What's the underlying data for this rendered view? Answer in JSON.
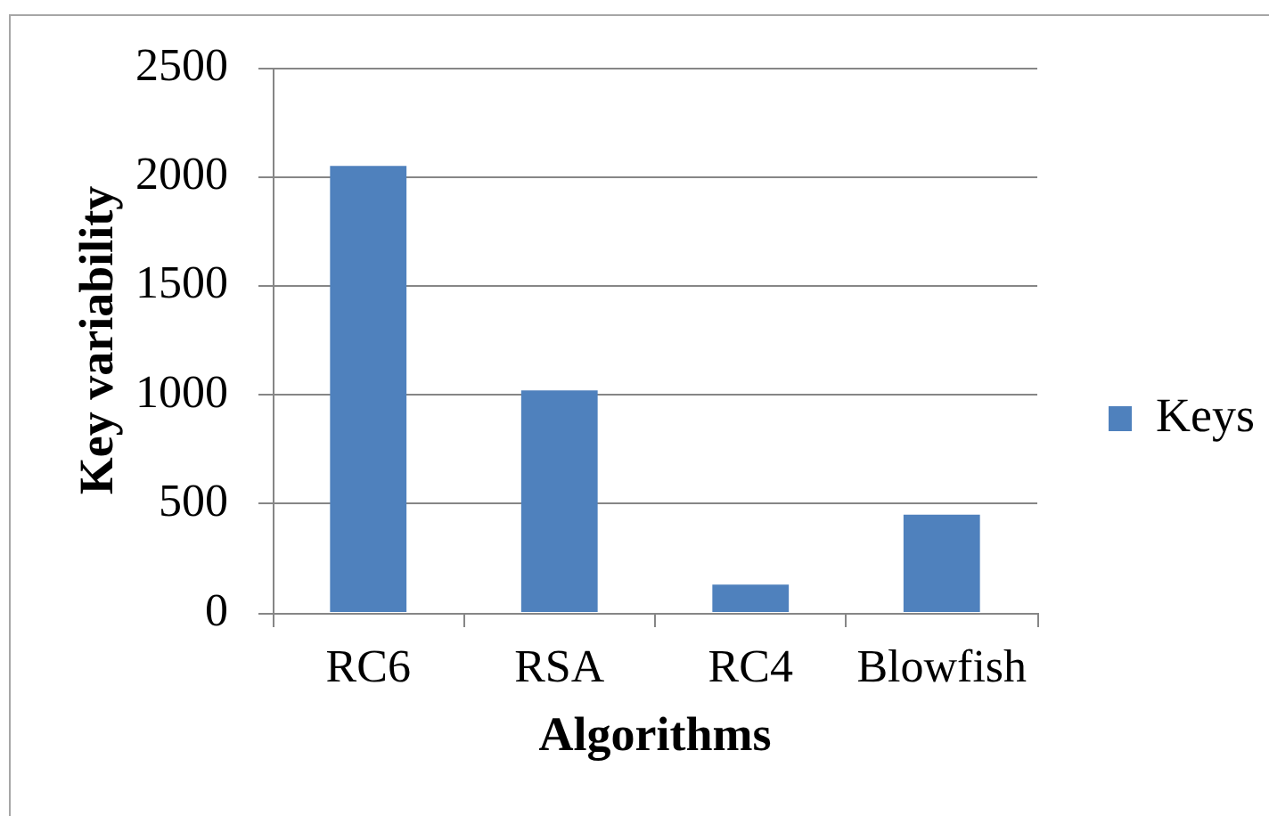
{
  "chart_data": {
    "type": "bar",
    "xlabel": "Algorithms",
    "ylabel": "Key variability",
    "categories": [
      "RC6",
      "RSA",
      "RC4",
      "Blowfish"
    ],
    "series": [
      {
        "name": "Keys",
        "color": "#4f81bd",
        "values": [
          2050,
          1020,
          130,
          450
        ]
      }
    ],
    "ylim": [
      0,
      2500
    ],
    "yticks": [
      0,
      500,
      1000,
      1500,
      2000,
      2500
    ],
    "grid": "y",
    "legend": "right"
  }
}
